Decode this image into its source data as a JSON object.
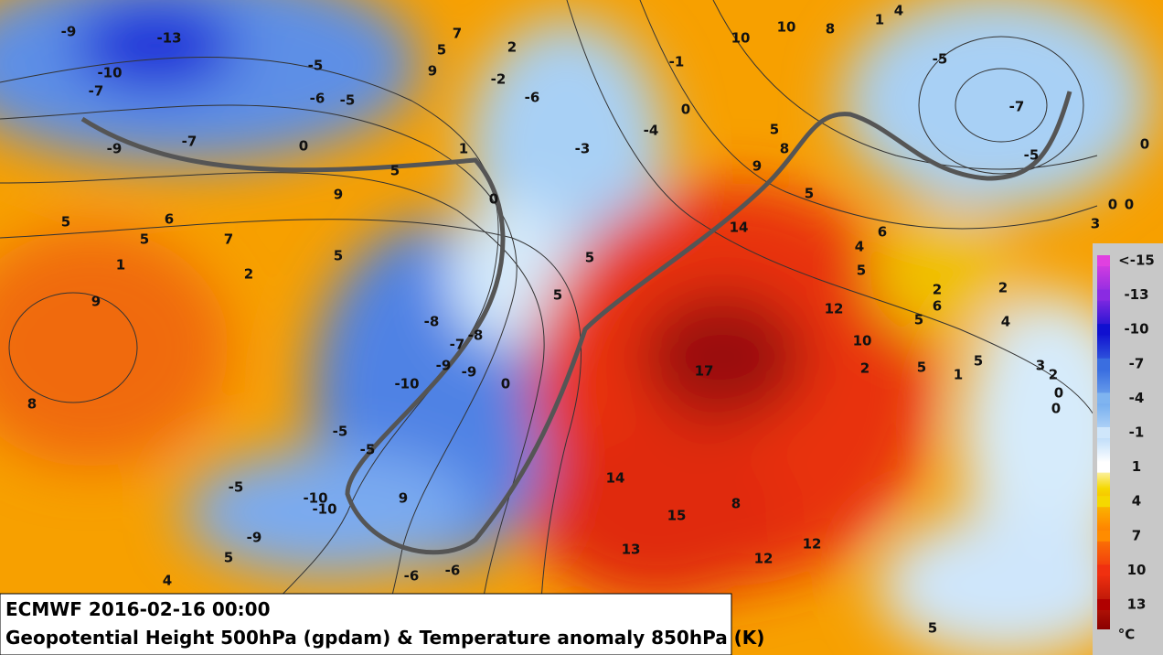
{
  "caption": {
    "line1": "ECMWF 2016-02-16 00:00",
    "line2": "Geopotential Height 500hPa (gpdam) & Temperature anomaly 850hPa (K)"
  },
  "colorbar": {
    "labels": [
      "<-15",
      "-13",
      "-10",
      "-7",
      "-4",
      "-1",
      "1",
      "4",
      "7",
      "10",
      "13"
    ],
    "unit": "°C",
    "colors": [
      "#e040e0",
      "#8a2be2",
      "#1010d0",
      "#3a6ee0",
      "#7fb4f0",
      "#cfe6fb",
      "#ffffff",
      "#f5d800",
      "#ff8c00",
      "#f03010",
      "#b00000"
    ]
  },
  "map_labels": [
    "-9",
    "-13",
    "-10",
    "-7",
    "-9",
    "-7",
    "-5",
    "-6",
    "-5",
    "0",
    "5",
    "9",
    "6",
    "7",
    "5",
    "5",
    "1",
    "2",
    "9",
    "8",
    "5",
    "7",
    "5",
    "9",
    "2",
    "-2",
    "-6",
    "1",
    "0",
    "-3",
    "-4",
    "-1",
    "0",
    "10",
    "10",
    "8",
    "4",
    "1",
    "-5",
    "-7",
    "-5",
    "5",
    "8",
    "9",
    "5",
    "14",
    "4",
    "6",
    "5",
    "2",
    "6",
    "2",
    "4",
    "12",
    "10",
    "5",
    "2",
    "5",
    "1",
    "5",
    "3",
    "2",
    "0",
    "0",
    "3",
    "0",
    "0",
    "0",
    "-8",
    "-8",
    "-7",
    "-9",
    "-9",
    "0",
    "-10",
    "-5",
    "-5",
    "-5",
    "-10",
    "-10",
    "9",
    "-9",
    "5",
    "4",
    "-6",
    "-6",
    "17",
    "14",
    "15",
    "8",
    "13",
    "12",
    "12",
    "5",
    "5",
    "5"
  ]
}
